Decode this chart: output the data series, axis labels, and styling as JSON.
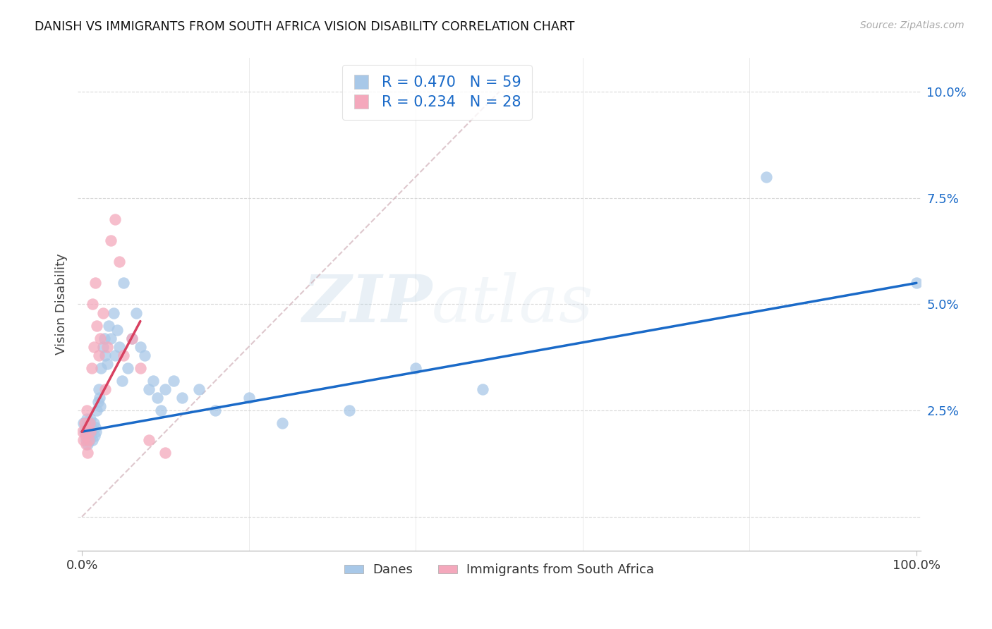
{
  "title": "DANISH VS IMMIGRANTS FROM SOUTH AFRICA VISION DISABILITY CORRELATION CHART",
  "source": "Source: ZipAtlas.com",
  "ylabel": "Vision Disability",
  "xlim": [
    -0.005,
    1.005
  ],
  "ylim": [
    -0.008,
    0.108
  ],
  "yticks": [
    0.0,
    0.025,
    0.05,
    0.075,
    0.1
  ],
  "ytick_labels": [
    "",
    "2.5%",
    "5.0%",
    "7.5%",
    "10.0%"
  ],
  "danes_R": 0.47,
  "danes_N": 59,
  "immigrants_R": 0.234,
  "immigrants_N": 28,
  "danes_color": "#a8c8e8",
  "danes_line_color": "#1a6ac8",
  "immigrants_color": "#f4a8bc",
  "immigrants_line_color": "#d84060",
  "diagonal_color": "#d0b0b8",
  "background_color": "#ffffff",
  "legend_danes_label": "Danes",
  "legend_immigrants_label": "Immigrants from South Africa",
  "watermark_zip": "ZIP",
  "watermark_atlas": "atlas",
  "marker_size": 140,
  "danes_x": [
    0.002,
    0.003,
    0.004,
    0.005,
    0.006,
    0.006,
    0.007,
    0.007,
    0.008,
    0.008,
    0.009,
    0.01,
    0.01,
    0.011,
    0.012,
    0.013,
    0.014,
    0.015,
    0.016,
    0.017,
    0.018,
    0.019,
    0.02,
    0.021,
    0.022,
    0.023,
    0.025,
    0.027,
    0.028,
    0.03,
    0.032,
    0.035,
    0.038,
    0.04,
    0.042,
    0.045,
    0.048,
    0.05,
    0.055,
    0.06,
    0.065,
    0.07,
    0.075,
    0.08,
    0.085,
    0.09,
    0.095,
    0.1,
    0.11,
    0.12,
    0.14,
    0.16,
    0.2,
    0.24,
    0.32,
    0.4,
    0.48,
    0.82,
    1.0
  ],
  "danes_y": [
    0.022,
    0.02,
    0.021,
    0.018,
    0.023,
    0.019,
    0.021,
    0.017,
    0.022,
    0.02,
    0.018,
    0.023,
    0.019,
    0.021,
    0.02,
    0.018,
    0.022,
    0.019,
    0.021,
    0.02,
    0.025,
    0.027,
    0.03,
    0.028,
    0.026,
    0.035,
    0.04,
    0.042,
    0.038,
    0.036,
    0.045,
    0.042,
    0.048,
    0.038,
    0.044,
    0.04,
    0.032,
    0.055,
    0.035,
    0.042,
    0.048,
    0.04,
    0.038,
    0.03,
    0.032,
    0.028,
    0.025,
    0.03,
    0.032,
    0.028,
    0.03,
    0.025,
    0.028,
    0.022,
    0.025,
    0.035,
    0.03,
    0.08,
    0.055
  ],
  "immigrants_x": [
    0.001,
    0.002,
    0.003,
    0.004,
    0.005,
    0.006,
    0.007,
    0.008,
    0.009,
    0.01,
    0.012,
    0.013,
    0.014,
    0.016,
    0.018,
    0.02,
    0.022,
    0.025,
    0.028,
    0.03,
    0.035,
    0.04,
    0.045,
    0.05,
    0.06,
    0.07,
    0.08,
    0.1
  ],
  "immigrants_y": [
    0.02,
    0.018,
    0.022,
    0.019,
    0.017,
    0.025,
    0.015,
    0.018,
    0.022,
    0.02,
    0.035,
    0.05,
    0.04,
    0.055,
    0.045,
    0.038,
    0.042,
    0.048,
    0.03,
    0.04,
    0.065,
    0.07,
    0.06,
    0.038,
    0.042,
    0.035,
    0.018,
    0.015
  ]
}
